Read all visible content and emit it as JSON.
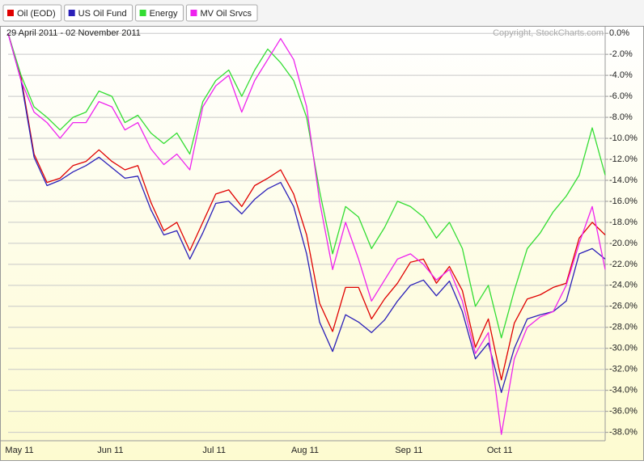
{
  "chart_data": {
    "type": "line",
    "subtitle": "29 April 2011 - 02 November 2011",
    "annotation": "Copyright, StockCharts.com",
    "categories": [
      null,
      "May 11",
      null,
      null,
      null,
      null,
      null,
      null,
      "Jun 11",
      null,
      null,
      null,
      null,
      null,
      null,
      null,
      "Jul 11",
      null,
      null,
      null,
      null,
      null,
      null,
      "Aug 11",
      null,
      null,
      null,
      null,
      null,
      null,
      null,
      "Sep 11",
      null,
      null,
      null,
      null,
      null,
      null,
      "Oct 11",
      null,
      null,
      null,
      null,
      null,
      null,
      null,
      null
    ],
    "series": [
      {
        "name": "Oil (EOD)",
        "color": "#e00000",
        "values": [
          0,
          -4.2,
          -11.5,
          -14.2,
          -13.8,
          -12.6,
          -12.2,
          -11.1,
          -12.2,
          -13.0,
          -12.6,
          -16.1,
          -18.8,
          -18.0,
          -20.7,
          -18.0,
          -15.3,
          -14.9,
          -16.5,
          -14.5,
          -13.8,
          -13.0,
          -15.3,
          -19.2,
          -25.7,
          -28.4,
          -24.2,
          -24.2,
          -27.2,
          -25.3,
          -23.8,
          -21.8,
          -21.5,
          -23.8,
          -22.2,
          -24.5,
          -29.9,
          -27.2,
          -33.0,
          -27.6,
          -25.3,
          -24.9,
          -24.2,
          -23.8,
          -19.5,
          -18.0,
          -19.2
        ]
      },
      {
        "name": "US Oil Fund",
        "color": "#2a1fb8",
        "values": [
          0,
          -4.5,
          -11.8,
          -14.5,
          -14.0,
          -13.2,
          -12.6,
          -11.8,
          -12.8,
          -13.8,
          -13.6,
          -16.8,
          -19.2,
          -18.8,
          -21.5,
          -19.0,
          -16.2,
          -16.0,
          -17.2,
          -15.8,
          -14.8,
          -14.2,
          -16.5,
          -21.0,
          -27.5,
          -30.3,
          -26.8,
          -27.5,
          -28.5,
          -27.3,
          -25.5,
          -24.0,
          -23.5,
          -25.0,
          -23.6,
          -26.5,
          -31.0,
          -29.5,
          -34.2,
          -30.0,
          -27.2,
          -26.8,
          -26.5,
          -25.5,
          -21.0,
          -20.5,
          -21.5
        ]
      },
      {
        "name": "Energy",
        "color": "#33dd33",
        "values": [
          0,
          -4.0,
          -7.0,
          -8.0,
          -9.2,
          -8.0,
          -7.5,
          -5.5,
          -6.0,
          -8.5,
          -7.8,
          -9.5,
          -10.5,
          -9.5,
          -11.5,
          -6.5,
          -4.5,
          -3.5,
          -6.0,
          -3.5,
          -1.5,
          -2.8,
          -4.5,
          -8.0,
          -15.0,
          -21.0,
          -16.5,
          -17.5,
          -20.5,
          -18.5,
          -16.0,
          -16.5,
          -17.5,
          -19.5,
          -18.0,
          -20.5,
          -26.0,
          -24.0,
          -29.0,
          -24.5,
          -20.5,
          -19.0,
          -17.0,
          -15.5,
          -13.5,
          -9.0,
          -13.5
        ]
      },
      {
        "name": "MV Oil Srvcs",
        "color": "#ee22ee",
        "values": [
          0,
          -4.5,
          -7.5,
          -8.5,
          -10.0,
          -8.5,
          -8.5,
          -6.5,
          -7.0,
          -9.2,
          -8.5,
          -11.0,
          -12.5,
          -11.5,
          -13.0,
          -7.0,
          -5.0,
          -4.0,
          -7.5,
          -4.5,
          -2.5,
          -0.5,
          -2.5,
          -7.0,
          -16.0,
          -22.5,
          -18.0,
          -21.5,
          -25.5,
          -23.5,
          -21.5,
          -21.0,
          -22.0,
          -23.5,
          -22.5,
          -25.5,
          -30.5,
          -28.5,
          -38.2,
          -31.0,
          -28.0,
          -27.0,
          -26.5,
          -24.0,
          -20.0,
          -16.5,
          -22.5
        ]
      }
    ],
    "ylim": [
      -38.8,
      0.4
    ],
    "yticks": [
      {
        "value": 0,
        "label": "0.0%"
      },
      {
        "value": -2,
        "label": "-2.0%"
      },
      {
        "value": -4,
        "label": "-4.0%"
      },
      {
        "value": -6,
        "label": "-6.0%"
      },
      {
        "value": -8,
        "label": "-8.0%"
      },
      {
        "value": -10,
        "label": "-10.0%"
      },
      {
        "value": -12,
        "label": "-12.0%"
      },
      {
        "value": -14,
        "label": "-14.0%"
      },
      {
        "value": -16,
        "label": "-16.0%"
      },
      {
        "value": -18,
        "label": "-18.0%"
      },
      {
        "value": -20,
        "label": "-20.0%"
      },
      {
        "value": -22,
        "label": "-22.0%"
      },
      {
        "value": -24,
        "label": "-24.0%"
      },
      {
        "value": -26,
        "label": "-26.0%"
      },
      {
        "value": -28,
        "label": "-28.0%"
      },
      {
        "value": -30,
        "label": "-30.0%"
      },
      {
        "value": -32,
        "label": "-32.0%"
      },
      {
        "value": -34,
        "label": "-34.0%"
      },
      {
        "value": -36,
        "label": "-36.0%"
      },
      {
        "value": -38,
        "label": "-38.0%"
      }
    ],
    "grid": true
  }
}
